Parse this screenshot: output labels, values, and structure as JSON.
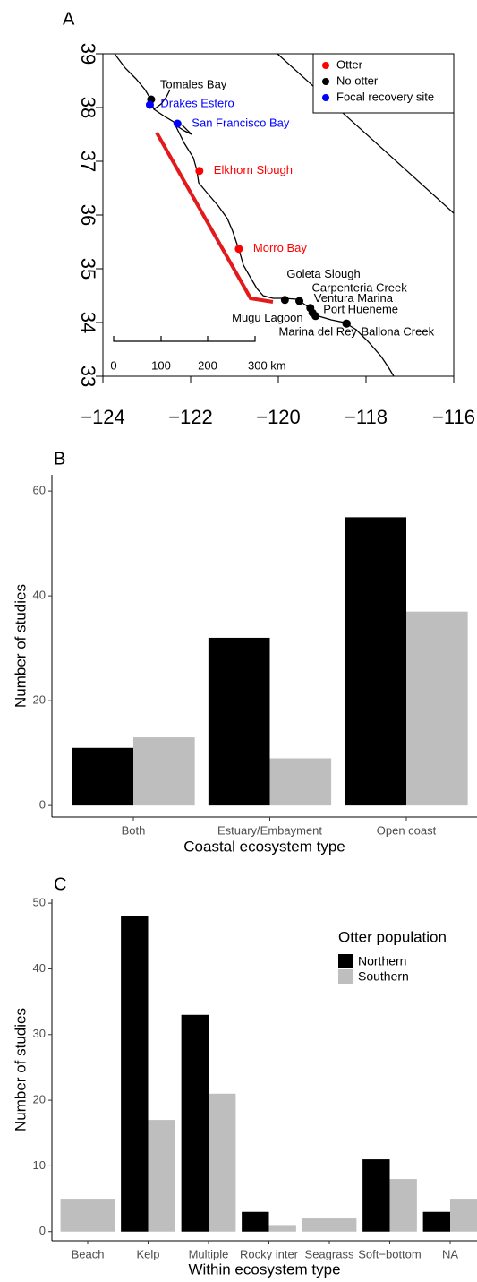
{
  "chart_data": [
    {
      "type": "map",
      "panel_label": "A",
      "xlim": [
        -124,
        -116
      ],
      "ylim": [
        33,
        39
      ],
      "xticks": [
        {
          "value": -124,
          "label": "−124"
        },
        {
          "value": -122,
          "label": "−122"
        },
        {
          "value": -120,
          "label": "−120"
        },
        {
          "value": -118,
          "label": "−118"
        },
        {
          "value": -116,
          "label": "−116"
        }
      ],
      "yticks": [
        33,
        34,
        35,
        36,
        37,
        38,
        39
      ],
      "legend_position": "top-right",
      "series": [
        {
          "name": "Otter",
          "color": "#ff0000",
          "labels": [
            "Elkhorn Slough",
            "Morro Bay"
          ],
          "x": [
            -121.8,
            -120.9
          ],
          "y": [
            36.82,
            35.37
          ]
        },
        {
          "name": "No otter",
          "color": "#000000",
          "labels": [
            "Tomales Bay",
            "Goleta Slough",
            "Carpenteria Creek",
            "Ventura Marina",
            "Mugu Lagoon",
            "Port Hueneme",
            "Marina del Rey",
            "Ballona Creek"
          ],
          "x": [
            -122.9,
            -119.85,
            -119.52,
            -119.27,
            -119.15,
            -119.22,
            -118.45,
            -118.44
          ],
          "y": [
            38.15,
            34.42,
            34.4,
            34.27,
            34.12,
            34.18,
            33.98,
            33.98
          ]
        },
        {
          "name": "Focal recovery site",
          "color": "#0000ff",
          "labels": [
            "Drakes Estero",
            "San Francisco Bay"
          ],
          "x": [
            -122.93,
            -122.3
          ],
          "y": [
            38.05,
            37.7
          ]
        }
      ],
      "scale_bar_labels": [
        "0",
        "100",
        "200",
        "300 km"
      ]
    },
    {
      "type": "bar",
      "panel_label": "B",
      "categories": [
        "Both",
        "Estuary/Embayment",
        "Open coast"
      ],
      "series": [
        {
          "color": "#000000",
          "values": [
            11,
            32,
            55
          ]
        },
        {
          "color": "#bebebe",
          "values": [
            13,
            9,
            37
          ]
        }
      ],
      "ylim": [
        -2.2,
        63.1
      ],
      "yticks": [
        0,
        20,
        40,
        60
      ],
      "xlabel": "Coastal ecosystem type",
      "ylabel": "Number of studies"
    },
    {
      "type": "bar",
      "panel_label": "C",
      "categories": [
        "Beach",
        "Kelp",
        "Multiple",
        "Rocky inter",
        "Seagrass",
        "Soft−bottom",
        "NA"
      ],
      "series": [
        {
          "name": "Northern",
          "color": "#000000",
          "values": [
            null,
            48,
            33,
            3,
            null,
            11,
            3
          ]
        },
        {
          "name": "Southern",
          "color": "#bebebe",
          "values": [
            5,
            17,
            21,
            1,
            2,
            8,
            5
          ]
        }
      ],
      "ylim": [
        -1.4,
        50.7
      ],
      "yticks": [
        0,
        10,
        20,
        30,
        40,
        50
      ],
      "xlabel": "Within ecosystem type",
      "ylabel": "Number of studies",
      "legend_title": "Otter population",
      "legend_position": "top-right"
    }
  ]
}
